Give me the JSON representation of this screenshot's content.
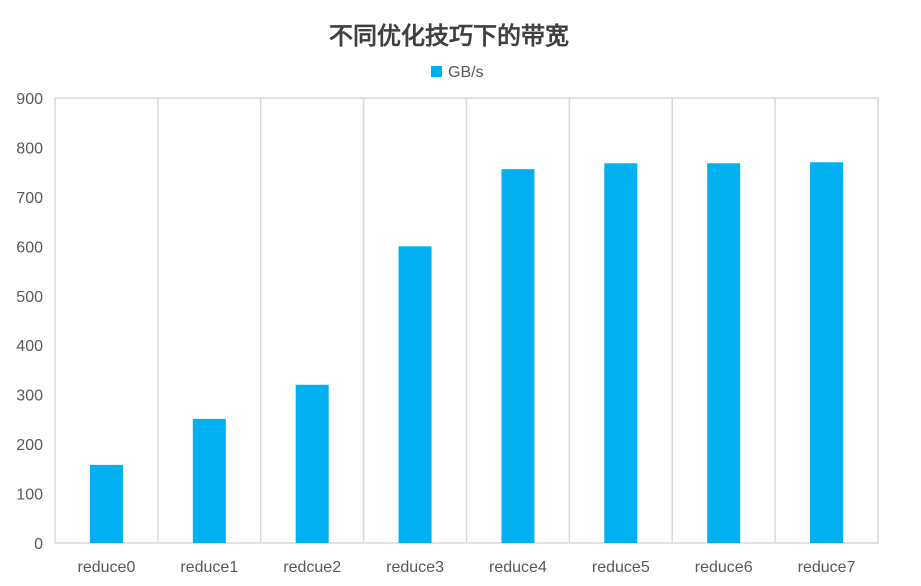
{
  "chart_data": {
    "type": "bar",
    "title": "不同优化技巧下的带宽",
    "categories": [
      "reduce0",
      "reduce1",
      "redcue2",
      "reduce3",
      "reduce4",
      "reduce5",
      "reduce6",
      "reduce7"
    ],
    "series": [
      {
        "name": "GB/s",
        "values": [
          158,
          251,
          320,
          600,
          756,
          768,
          768,
          770
        ]
      }
    ],
    "yticks": [
      "0",
      "100",
      "200",
      "300",
      "400",
      "500",
      "600",
      "700",
      "800",
      "900"
    ],
    "ylim": [
      0,
      900
    ],
    "xlabel": "",
    "ylabel": "",
    "grid": "vertical category separators",
    "legend": "top-center",
    "colors": {
      "bar": "#00B0F0",
      "grid": "#D9D9D9",
      "text": "#595959",
      "title": "#404040"
    }
  }
}
